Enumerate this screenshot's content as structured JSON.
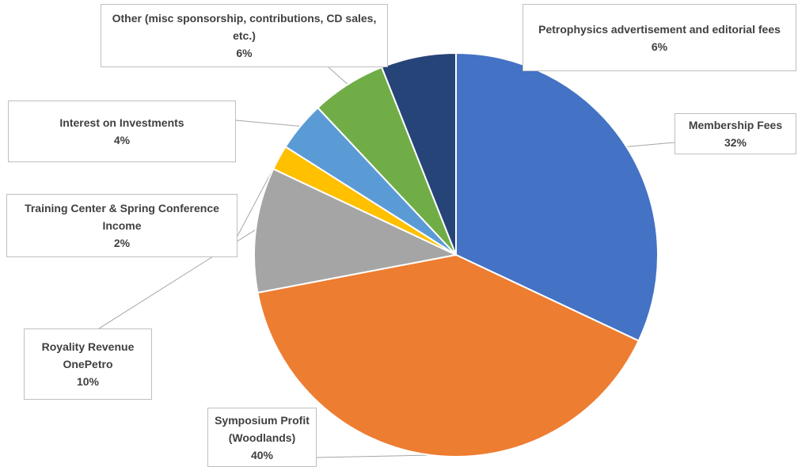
{
  "chart_data": {
    "type": "pie",
    "categories": [
      "Membership Fees",
      "Symposium Profit (Woodlands)",
      "Royality Revenue OnePetro",
      "Training Center & Spring Conference Income",
      "Interest on Investments",
      "Other (misc sponsorship, contributions, CD sales, etc.)",
      "Petrophysics advertisement and editorial fees"
    ],
    "values": [
      32,
      40,
      10,
      2,
      4,
      6,
      6
    ],
    "value_labels": [
      "32%",
      "40%",
      "10%",
      "2%",
      "4%",
      "6%",
      "6%"
    ],
    "colors": [
      "#4472c4",
      "#ed7d31",
      "#a5a5a5",
      "#ffc000",
      "#5b9bd5",
      "#70ad47",
      "#264478"
    ]
  }
}
